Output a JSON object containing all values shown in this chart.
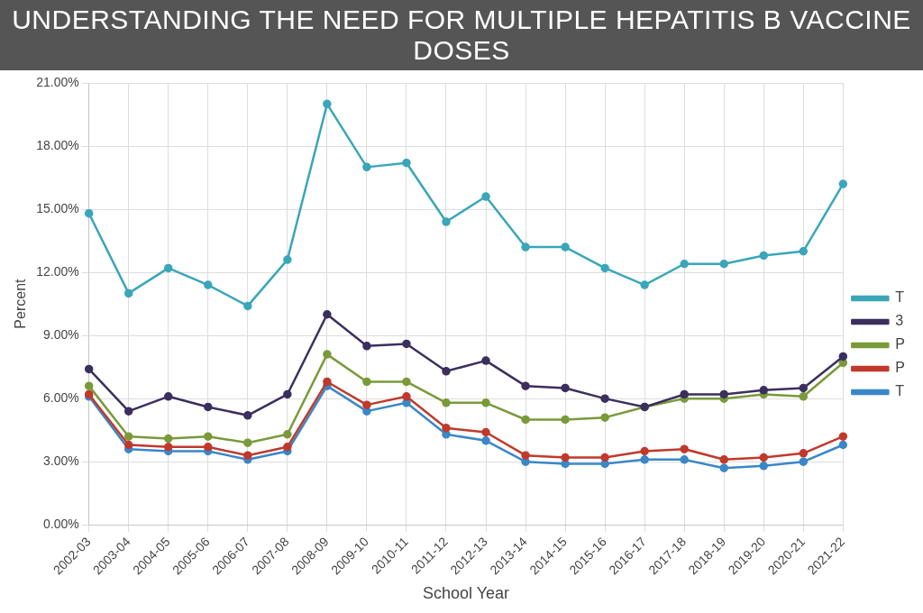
{
  "chart_data": {
    "type": "line",
    "title": "UNDERSTANDING THE NEED FOR MULTIPLE HEPATITIS B VACCINE DOSES",
    "xlabel": "School Year",
    "ylabel": "Percent",
    "categories": [
      "2002-03",
      "2003-04",
      "2004-05",
      "2005-06",
      "2006-07",
      "2007-08",
      "2008-09",
      "2009-10",
      "2010-11",
      "2011-12",
      "2012-13",
      "2013-14",
      "2014-15",
      "2015-16",
      "2016-17",
      "2017-18",
      "2018-19",
      "2019-20",
      "2020-21",
      "2021-22"
    ],
    "series": [
      {
        "name": "T",
        "color": "#3aa6b9",
        "values": [
          14.8,
          11.0,
          12.2,
          11.4,
          10.4,
          12.6,
          20.0,
          17.0,
          17.2,
          14.4,
          15.6,
          13.2,
          13.2,
          12.2,
          11.4,
          12.4,
          12.4,
          12.8,
          13.0,
          16.2
        ]
      },
      {
        "name": "3",
        "color": "#3b2f5e",
        "values": [
          7.4,
          5.4,
          6.1,
          5.6,
          5.2,
          6.2,
          10.0,
          8.5,
          8.6,
          7.3,
          7.8,
          6.6,
          6.5,
          6.0,
          5.6,
          6.2,
          6.2,
          6.4,
          6.5,
          8.0
        ]
      },
      {
        "name": "P",
        "color": "#7a9a3a",
        "values": [
          6.6,
          4.2,
          4.1,
          4.2,
          3.9,
          4.3,
          8.1,
          6.8,
          6.8,
          5.8,
          5.8,
          5.0,
          5.0,
          5.1,
          5.6,
          6.0,
          6.0,
          6.2,
          6.1,
          7.7
        ]
      },
      {
        "name": "P",
        "color": "#c0392b",
        "values": [
          6.2,
          3.8,
          3.7,
          3.7,
          3.3,
          3.7,
          6.8,
          5.7,
          6.1,
          4.6,
          4.4,
          3.3,
          3.2,
          3.2,
          3.5,
          3.6,
          3.1,
          3.2,
          3.4,
          4.2
        ]
      },
      {
        "name": "T",
        "color": "#3a87c8",
        "values": [
          6.1,
          3.6,
          3.5,
          3.5,
          3.1,
          3.5,
          6.6,
          5.4,
          5.8,
          4.3,
          4.0,
          3.0,
          2.9,
          2.9,
          3.1,
          3.1,
          2.7,
          2.8,
          3.0,
          3.8
        ]
      }
    ],
    "ylim": [
      0,
      21
    ],
    "yticks": [
      {
        "value": 0,
        "label": "0.00%"
      },
      {
        "value": 3,
        "label": "3.00%"
      },
      {
        "value": 6,
        "label": "6.00%"
      },
      {
        "value": 9,
        "label": "9.00%"
      },
      {
        "value": 12,
        "label": "12.00%"
      },
      {
        "value": 15,
        "label": "15.00%"
      },
      {
        "value": 18,
        "label": "18.00%"
      },
      {
        "value": 21,
        "label": "21.00%"
      }
    ],
    "grid": true,
    "legend": "right",
    "marker": "circle",
    "line_style": "solid"
  }
}
